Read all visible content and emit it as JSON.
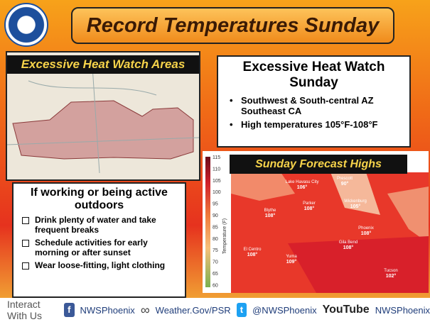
{
  "header": {
    "title": "Record Temperatures Sunday"
  },
  "watch_map": {
    "title": "Excessive Heat Watch Areas"
  },
  "watch_box": {
    "title": "Excessive Heat Watch Sunday",
    "bullets": [
      "Southwest & South-central AZ Southeast CA",
      "High temperatures 105°F-108°F"
    ]
  },
  "safety_box": {
    "title": "If working or being active outdoors",
    "bullets": [
      "Drink plenty of water and take frequent breaks",
      "Schedule activities for early morning or after sunset",
      "Wear loose-fitting, light clothing"
    ]
  },
  "forecast_map": {
    "title": "Sunday Forecast Highs",
    "colorbar_label": "Temperature (F)",
    "colorbar_ticks": [
      115,
      110,
      105,
      100,
      95,
      90,
      85,
      80,
      75,
      70,
      65,
      60
    ],
    "cities": [
      {
        "name": "Lake Havasu City",
        "temp": "106°"
      },
      {
        "name": "Prescott",
        "temp": "90°"
      },
      {
        "name": "Parker",
        "temp": "108°"
      },
      {
        "name": "Wickenburg",
        "temp": "105°"
      },
      {
        "name": "Blythe",
        "temp": "108°"
      },
      {
        "name": "Phoenix",
        "temp": "108°"
      },
      {
        "name": "Gila Bend",
        "temp": "108°"
      },
      {
        "name": "El Centro",
        "temp": "108°"
      },
      {
        "name": "Yuma",
        "temp": "109°"
      },
      {
        "name": "Tucson",
        "temp": "102°"
      }
    ]
  },
  "footer": {
    "intro": "Interact With Us",
    "facebook": "NWSPhoenix",
    "web": "Weather.Gov/PSR",
    "twitter": "@NWSPhoenix",
    "youtube_logo": "YouTube",
    "youtube": "NWSPhoenix"
  }
}
